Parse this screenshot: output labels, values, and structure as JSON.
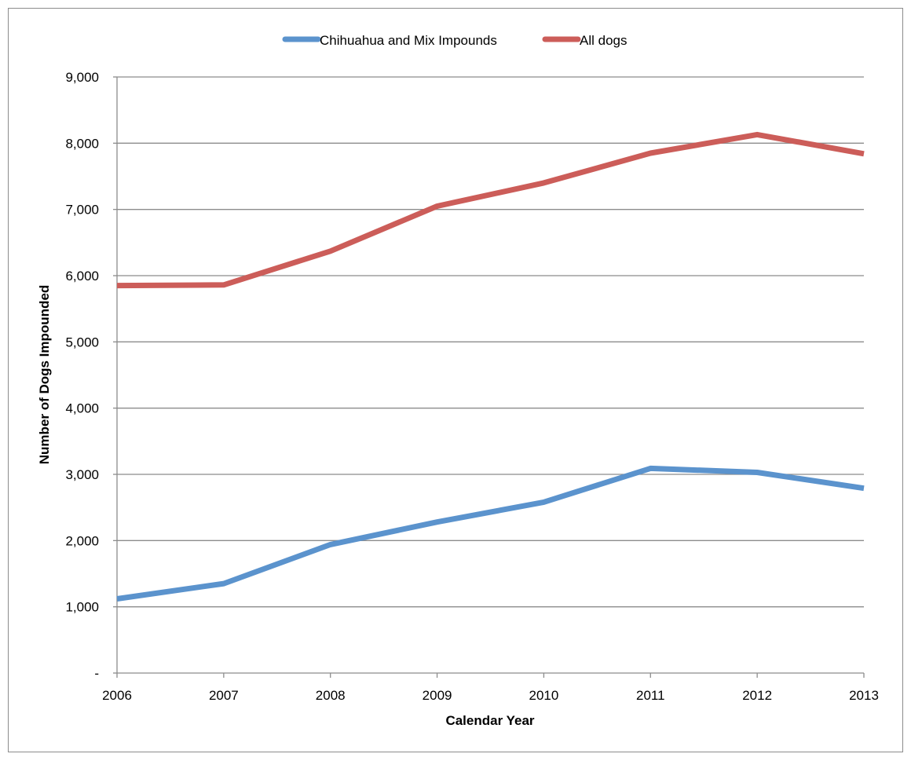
{
  "chart_data": {
    "type": "line",
    "title": "",
    "xlabel": "Calendar Year",
    "ylabel": "Number of Dogs Impounded",
    "x": [
      "2006",
      "2007",
      "2008",
      "2009",
      "2010",
      "2011",
      "2012",
      "2013"
    ],
    "ylim": [
      0,
      9000
    ],
    "yticks": [
      0,
      1000,
      2000,
      3000,
      4000,
      5000,
      6000,
      7000,
      8000,
      9000
    ],
    "ytick_labels": [
      "-",
      "1,000",
      "2,000",
      "3,000",
      "4,000",
      "5,000",
      "6,000",
      "7,000",
      "8,000",
      "9,000"
    ],
    "grid": true,
    "legend_position": "top",
    "series": [
      {
        "name": "Chihuahua and Mix Impounds",
        "color": "#5b93cd",
        "values": [
          1120,
          1350,
          1940,
          2280,
          2580,
          3090,
          3030,
          2790
        ]
      },
      {
        "name": "All dogs",
        "color": "#cc5d59",
        "values": [
          5850,
          5860,
          6370,
          7050,
          7400,
          7850,
          8130,
          7840
        ]
      }
    ]
  }
}
